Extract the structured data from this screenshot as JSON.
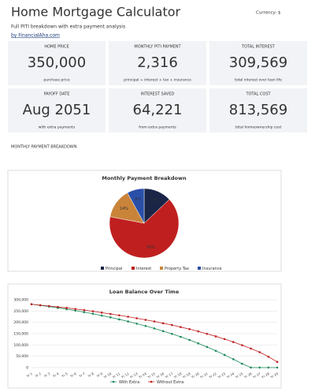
{
  "header": {
    "title": "Home Mortgage Calculator",
    "currency": "Currency: $",
    "subtitle": "Full PITI breakdown with extra payment analysis",
    "link": "by FinancialAha.com"
  },
  "cards": [
    {
      "label": "HOME PRICE",
      "value": "350,000",
      "note": "purchase price",
      "color": "#1e2a4a"
    },
    {
      "label": "MONTHLY PITI PAYMENT",
      "value": "2,316",
      "note": "principal + interest + tax + insurance",
      "color": "#1e2a4a"
    },
    {
      "label": "TOTAL INTEREST",
      "value": "309,569",
      "note": "total interest over loan life",
      "color": "#b22222"
    },
    {
      "label": "PAYOFF DATE",
      "value": "Aug 2051",
      "note": "with extra payments",
      "color": "#2a4f9a"
    },
    {
      "label": "INTEREST SAVED",
      "value": "64,221",
      "note": "from extra payments",
      "color": "#1a7a52"
    },
    {
      "label": "TOTAL COST",
      "value": "813,569",
      "note": "total homeownership cost",
      "color": "#c07a2a"
    }
  ],
  "section_label": "MONTHLY PAYMENT BREAKDOWN",
  "charts": [
    {
      "type": "pie",
      "title": "Monthly Payment Breakdown",
      "categories": [
        "Principal",
        "Interest",
        "Property Tax",
        "Insurance"
      ],
      "values": [
        13,
        65,
        14,
        8
      ],
      "value_labels": [
        "13%",
        "65%",
        "14%",
        "8%"
      ],
      "colors": [
        "#1a2547",
        "#c01f1f",
        "#c9843a",
        "#2a4fa8"
      ],
      "legend": "bottom"
    },
    {
      "type": "line",
      "title": "Loan Balance Over Time",
      "categories": [
        "Yr 1",
        "Yr 2",
        "Yr 3",
        "Yr 4",
        "Yr 5",
        "Yr 6",
        "Yr 7",
        "Yr 8",
        "Yr 9",
        "Yr 10",
        "Yr 11",
        "Yr 12",
        "Yr 13",
        "Yr 14",
        "Yr 15",
        "Yr 16",
        "Yr 17",
        "Yr 18",
        "Yr 19",
        "Yr 20",
        "Yr 21",
        "Yr 22",
        "Yr 23",
        "Yr 24",
        "Yr 25",
        "Yr 26",
        "Yr 27",
        "Yr 28",
        "Yr 29"
      ],
      "series": [
        {
          "name": "With Extra",
          "color": "#1a8a5a",
          "values": [
            280000,
            275000,
            270000,
            264000,
            258000,
            252000,
            245000,
            238000,
            230000,
            222000,
            213000,
            204000,
            194000,
            184000,
            173000,
            161000,
            149000,
            136000,
            122000,
            107000,
            91000,
            74000,
            56000,
            37000,
            17000,
            0,
            0,
            0,
            0
          ]
        },
        {
          "name": "Without Extra",
          "color": "#c01f1f",
          "values": [
            280000,
            276000,
            272000,
            268000,
            264000,
            259000,
            254000,
            249000,
            243000,
            237000,
            231000,
            225000,
            218000,
            211000,
            204000,
            196000,
            188000,
            179000,
            170000,
            160000,
            149000,
            138000,
            126000,
            113000,
            99000,
            84000,
            68000,
            48000,
            25000
          ]
        }
      ],
      "ylim": [
        0,
        300000
      ],
      "yticks": [
        0,
        {
          "value": 50000,
          "label": "50,000"
        },
        {
          "value": 100000,
          "label": "100,000"
        },
        {
          "value": 150000,
          "label": "150,000"
        },
        {
          "value": 200000,
          "label": "200,000"
        },
        {
          "value": 250000,
          "label": "250,000"
        },
        {
          "value": 300000,
          "label": "300,000"
        }
      ],
      "grid": true,
      "legend": "bottom"
    }
  ]
}
